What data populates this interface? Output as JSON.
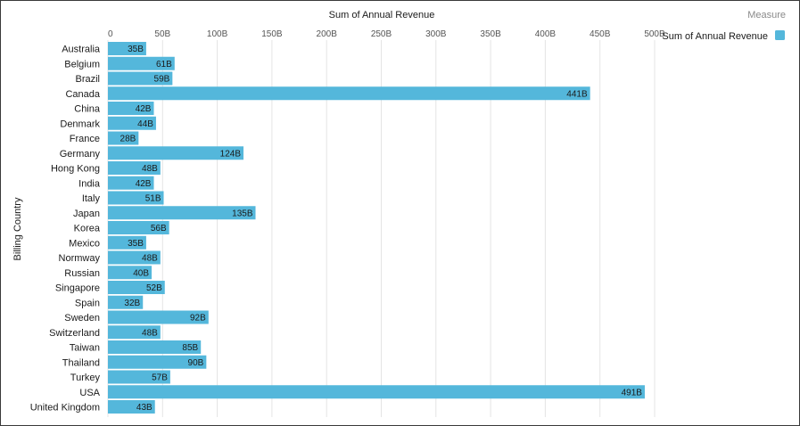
{
  "chart_data": {
    "type": "bar",
    "orientation": "horizontal",
    "title": "",
    "xlabel": "Sum of Annual Revenue",
    "ylabel": "Billing Country",
    "xlim": [
      0,
      500
    ],
    "xticks": [
      0,
      50,
      100,
      150,
      200,
      250,
      300,
      350,
      400,
      450,
      500
    ],
    "xtick_labels": [
      "0",
      "50B",
      "100B",
      "150B",
      "200B",
      "250B",
      "300B",
      "350B",
      "400B",
      "450B",
      "500B"
    ],
    "grid": true,
    "legend": {
      "title": "Measure",
      "position": "top-right",
      "entries": [
        {
          "label": "Sum of Annual Revenue",
          "color": "#54b7db"
        }
      ]
    },
    "categories": [
      "Australia",
      "Belgium",
      "Brazil",
      "Canada",
      "China",
      "Denmark",
      "France",
      "Germany",
      "Hong Kong",
      "India",
      "Italy",
      "Japan",
      "Korea",
      "Mexico",
      "Normway",
      "Russian",
      "Singapore",
      "Spain",
      "Sweden",
      "Switzerland",
      "Taiwan",
      "Thailand",
      "Turkey",
      "USA",
      "United Kingdom"
    ],
    "series": [
      {
        "name": "Sum of Annual Revenue",
        "color": "#54b7db",
        "values": [
          35,
          61,
          59,
          441,
          42,
          44,
          28,
          124,
          48,
          42,
          51,
          135,
          56,
          35,
          48,
          40,
          52,
          32,
          92,
          48,
          85,
          90,
          57,
          491,
          43
        ],
        "labels": [
          "35B",
          "61B",
          "59B",
          "441B",
          "42B",
          "44B",
          "28B",
          "124B",
          "48B",
          "42B",
          "51B",
          "135B",
          "56B",
          "35B",
          "48B",
          "40B",
          "52B",
          "32B",
          "92B",
          "48B",
          "85B",
          "90B",
          "57B",
          "491B",
          "43B"
        ]
      }
    ]
  }
}
